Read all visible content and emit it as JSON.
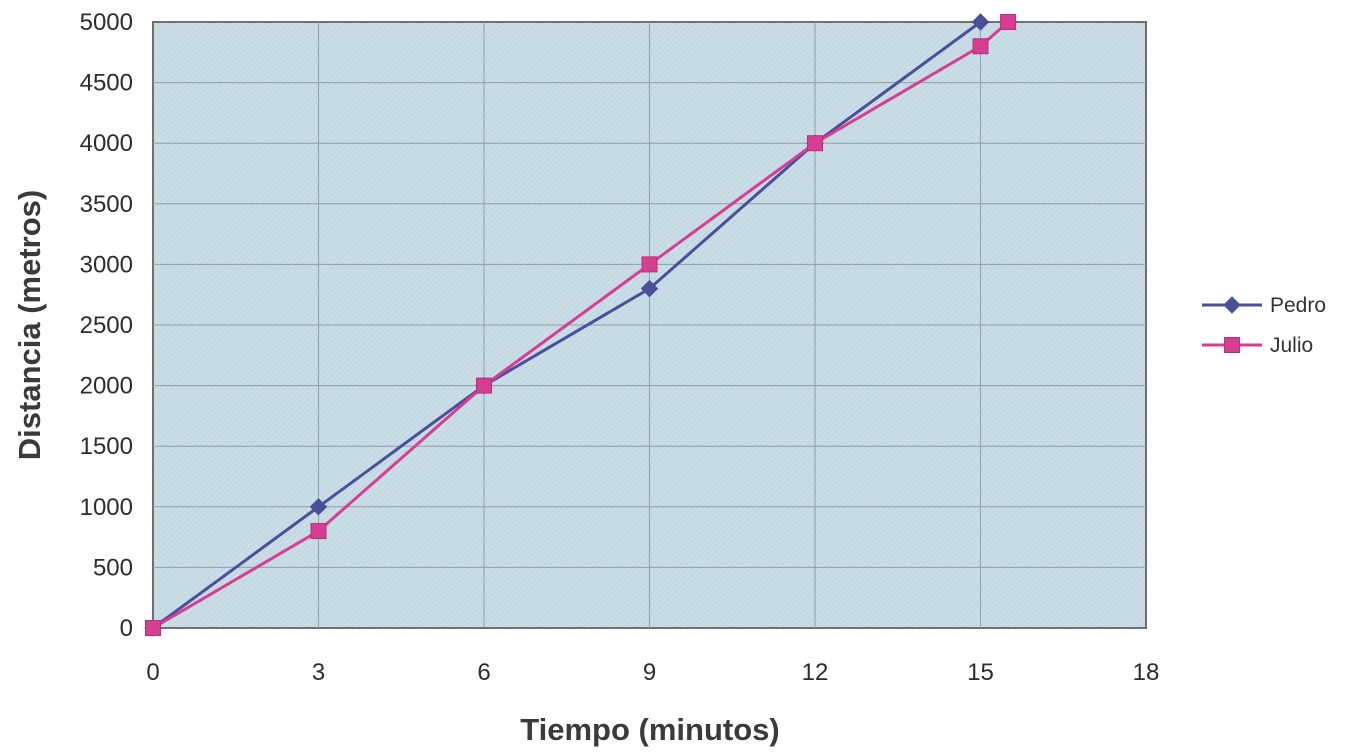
{
  "chart_data": {
    "type": "line",
    "title": "",
    "xlabel": "Tiempo (minutos)",
    "ylabel": "Distancia (metros)",
    "xlim": [
      0,
      18
    ],
    "ylim": [
      0,
      5000
    ],
    "x_ticks": [
      "0",
      "3",
      "6",
      "9",
      "12",
      "15",
      "18"
    ],
    "y_ticks": [
      "0",
      "500",
      "1000",
      "1500",
      "2000",
      "2500",
      "3000",
      "3500",
      "4000",
      "4500",
      "5000"
    ],
    "grid": true,
    "legend_position": "right",
    "plot_background": "#c9dde6",
    "series": [
      {
        "name": "Pedro",
        "color": "#4a4f9a",
        "marker": "diamond",
        "points": [
          {
            "x": 0,
            "y": 0
          },
          {
            "x": 3,
            "y": 1000
          },
          {
            "x": 6,
            "y": 2000
          },
          {
            "x": 9,
            "y": 2800
          },
          {
            "x": 12,
            "y": 4000
          },
          {
            "x": 15,
            "y": 5000
          }
        ]
      },
      {
        "name": "Julio",
        "color": "#d63e91",
        "marker": "square",
        "points": [
          {
            "x": 0,
            "y": 0
          },
          {
            "x": 3,
            "y": 800
          },
          {
            "x": 6,
            "y": 2000
          },
          {
            "x": 9,
            "y": 3000
          },
          {
            "x": 12,
            "y": 4000
          },
          {
            "x": 15,
            "y": 4800
          },
          {
            "x": 15.5,
            "y": 5000
          }
        ]
      }
    ]
  }
}
